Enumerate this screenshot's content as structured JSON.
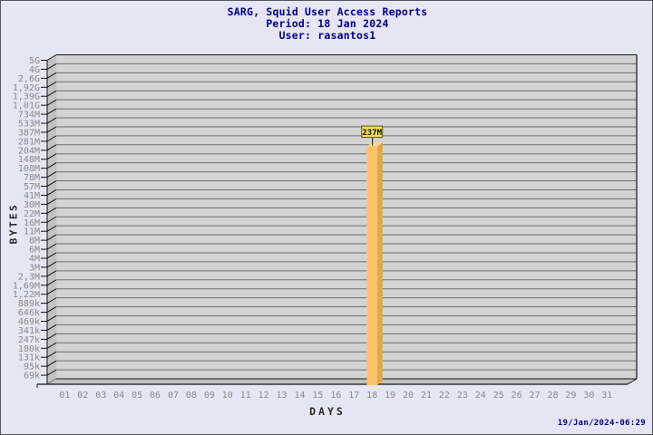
{
  "header": {
    "title": "SARG, Squid User Access Reports",
    "period": "Period: 18 Jan 2024",
    "user": "User: rasantos1"
  },
  "footer": {
    "generated": "19/Jan/2024-06:29"
  },
  "chart_data": {
    "type": "bar",
    "title": "SARG, Squid User Access Reports",
    "subtitle": [
      "Period: 18 Jan 2024",
      "User: rasantos1"
    ],
    "xlabel": "DAYS",
    "ylabel": "BYTES",
    "y_scale": "log",
    "y_top_value": 5000000000,
    "y_step_ratio": 1.375,
    "grid": true,
    "y_tick_labels": [
      "5G",
      "4G",
      "2,6G",
      "1,92G",
      "1,39G",
      "1,01G",
      "734M",
      "533M",
      "387M",
      "281M",
      "204M",
      "148M",
      "108M",
      "78M",
      "57M",
      "41M",
      "30M",
      "22M",
      "16M",
      "11M",
      "8M",
      "6M",
      "4M",
      "3M",
      "2,3M",
      "1,69M",
      "1,22M",
      "889k",
      "646k",
      "469k",
      "341k",
      "247k",
      "180k",
      "131k",
      "95k",
      "69k"
    ],
    "x_tick_labels": [
      "01",
      "02",
      "03",
      "04",
      "05",
      "06",
      "07",
      "08",
      "09",
      "10",
      "11",
      "12",
      "13",
      "14",
      "15",
      "16",
      "17",
      "18",
      "19",
      "20",
      "21",
      "22",
      "23",
      "24",
      "25",
      "26",
      "27",
      "28",
      "29",
      "30",
      "31"
    ],
    "bars": [
      {
        "day": 18,
        "value": 237000000,
        "label": "237M"
      }
    ]
  },
  "colors": {
    "background": "#E5E5F4",
    "frame_border": "#55555F",
    "title_text": "#00008B",
    "plot_face": "#D3D3D3",
    "wall_face": "#C2C2C2",
    "gridline": "#6E6E6E",
    "edge": "#141414",
    "tick_text": "#8A8A8A",
    "axis_label_text": "#2B2B2B",
    "bar_front": "#FFC469",
    "bar_side": "#E0A848",
    "bar_top": "#FFD98F",
    "value_box_fill": "#F0DC50",
    "value_box_border": "#5C5C14",
    "value_box_text": "#111111",
    "timestamp_text": "#00008B"
  }
}
